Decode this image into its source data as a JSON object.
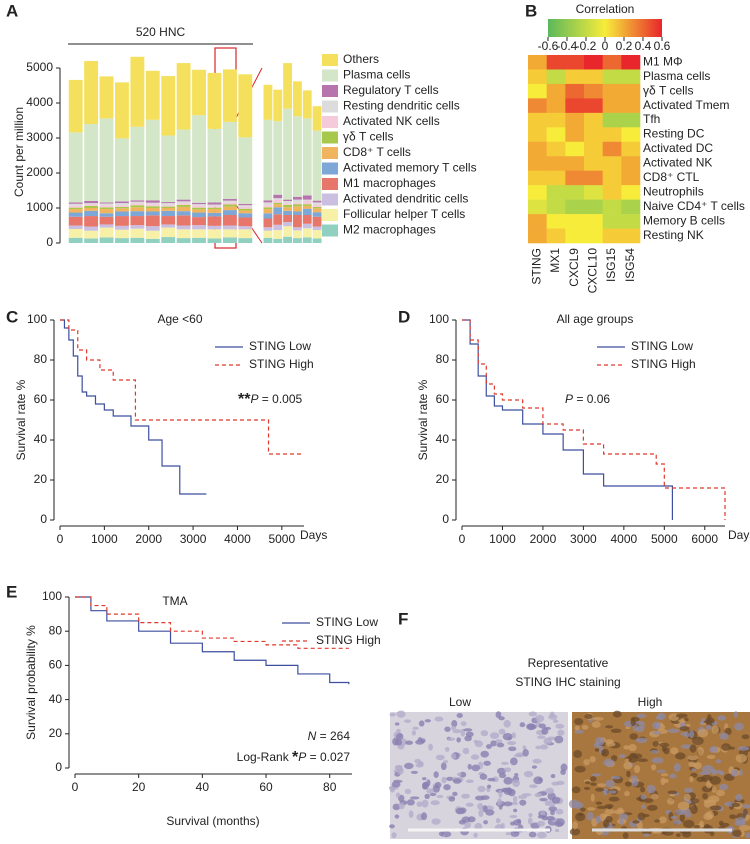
{
  "panel_letters": [
    "A",
    "B",
    "C",
    "D",
    "E",
    "F"
  ],
  "chart_data": [
    {
      "type": "stacked_bar",
      "ylabel": "Count per million",
      "annotation": "520 HNC",
      "categories": [
        null,
        null,
        null,
        null,
        null,
        null,
        null,
        null,
        null,
        null,
        null,
        null
      ],
      "ylim": [
        0,
        5200
      ],
      "yticks": [
        0,
        1000,
        2000,
        3000,
        4000,
        5000
      ],
      "series": [
        {
          "name": "Others",
          "color": "#f4e05c",
          "values": [
            1500,
            1800,
            1200,
            1600,
            2000,
            1400,
            1700,
            1900,
            1300,
            1600,
            1500,
            1800
          ]
        },
        {
          "name": "Plasma cells",
          "color": "#d3e6c8",
          "values": [
            2000,
            2200,
            2400,
            1800,
            2100,
            2300,
            1900,
            2000,
            2500,
            2100,
            2200,
            1900
          ]
        },
        {
          "name": "Regulatory T cells",
          "color": "#b775ad",
          "values": [
            40,
            60,
            30,
            50,
            40,
            70,
            30,
            50,
            40,
            60,
            50,
            40
          ]
        },
        {
          "name": "Resting dendritic cells",
          "color": "#dddcdc",
          "values": [
            60,
            40,
            50,
            70,
            50,
            40,
            60,
            50,
            40,
            50,
            60,
            50
          ]
        },
        {
          "name": "Activated NK cells",
          "color": "#f5cadb",
          "values": [
            50,
            40,
            60,
            40,
            50,
            60,
            40,
            50,
            60,
            40,
            50,
            50
          ]
        },
        {
          "name": "γδ T cells",
          "color": "#a8c84c",
          "values": [
            40,
            60,
            50,
            40,
            60,
            50,
            40,
            60,
            50,
            40,
            60,
            50
          ]
        },
        {
          "name": "CD8⁺ T cells",
          "color": "#f1b45e",
          "values": [
            100,
            80,
            120,
            90,
            110,
            100,
            80,
            120,
            90,
            110,
            100,
            80
          ]
        },
        {
          "name": "Activated memory T cells",
          "color": "#7ca7d6",
          "values": [
            120,
            150,
            100,
            130,
            140,
            110,
            150,
            120,
            130,
            100,
            140,
            120
          ]
        },
        {
          "name": "M1 macrophages",
          "color": "#e8776b",
          "values": [
            250,
            300,
            220,
            280,
            260,
            310,
            240,
            290,
            230,
            270,
            300,
            250
          ]
        },
        {
          "name": "Activated dendritic cells",
          "color": "#cbbfe1",
          "values": [
            100,
            120,
            90,
            110,
            100,
            130,
            90,
            110,
            120,
            100,
            110,
            90
          ]
        },
        {
          "name": "Follicular helper T cells",
          "color": "#f7f1a8",
          "values": [
            250,
            220,
            280,
            240,
            260,
            230,
            270,
            250,
            240,
            260,
            230,
            250
          ]
        },
        {
          "name": "M2 macrophages",
          "color": "#90d0c0",
          "values": [
            150,
            130,
            160,
            140,
            150,
            120,
            170,
            140,
            150,
            130,
            160,
            140
          ]
        }
      ]
    },
    {
      "type": "stacked_bar",
      "categories": [
        null,
        null,
        null,
        null,
        null,
        null
      ],
      "ylim": [
        0,
        5200
      ],
      "series": [
        {
          "color": "#f4e05c",
          "values": [
            1000,
            900,
            1300,
            1000,
            800,
            700
          ]
        },
        {
          "color": "#d3e6c8",
          "values": [
            2300,
            2100,
            2600,
            2300,
            2200,
            2000
          ]
        },
        {
          "color": "#b775ad",
          "values": [
            60,
            100,
            40,
            80,
            120,
            50
          ]
        },
        {
          "color": "#dddcdc",
          "values": [
            80,
            50,
            60,
            90,
            40,
            70
          ]
        },
        {
          "color": "#f5cadb",
          "values": [
            60,
            80,
            50,
            40,
            90,
            60
          ]
        },
        {
          "color": "#a8c84c",
          "values": [
            50,
            40,
            70,
            60,
            50,
            40
          ]
        },
        {
          "color": "#f1b45e",
          "values": [
            120,
            90,
            100,
            150,
            80,
            110
          ]
        },
        {
          "color": "#7ca7d6",
          "values": [
            150,
            200,
            120,
            100,
            180,
            130
          ]
        },
        {
          "color": "#e8776b",
          "values": [
            250,
            300,
            200,
            350,
            250,
            280
          ]
        },
        {
          "color": "#cbbfe1",
          "values": [
            100,
            150,
            120,
            90,
            130,
            100
          ]
        },
        {
          "color": "#f7f1a8",
          "values": [
            200,
            250,
            300,
            220,
            260,
            240
          ]
        },
        {
          "color": "#90d0c0",
          "values": [
            150,
            120,
            180,
            140,
            160,
            130
          ]
        }
      ]
    },
    {
      "type": "heatmap",
      "title": "Correlation",
      "colormap": [
        "#5cb85c",
        "#f7ec3a",
        "#e8262b"
      ],
      "clim": [
        -0.6,
        0.6
      ],
      "cticks": [
        -0.6,
        -0.4,
        -0.2,
        0,
        0.2,
        0.4,
        0.6
      ],
      "rows": [
        "M1 MΦ",
        "Plasma cells",
        "γδ T cells",
        "Activated Tmem",
        "Tfh",
        "Resting DC",
        "Activated DC",
        "Activated NK",
        "CD8⁺ CTL",
        "Neutrophils",
        "Naive CD4⁺ T cells",
        "Memory B cells",
        "Resting NK"
      ],
      "columns": [
        "STING",
        "MX1",
        "CXCL9",
        "CXCL10",
        "ISG15",
        "ISG54"
      ],
      "values": [
        [
          0.2,
          0.5,
          0.5,
          0.6,
          0.4,
          0.6
        ],
        [
          0.1,
          -0.2,
          0.1,
          0.1,
          -0.2,
          -0.2
        ],
        [
          0,
          0.2,
          0.4,
          0.3,
          0.2,
          0.2
        ],
        [
          0.3,
          0.2,
          0.5,
          0.5,
          0.2,
          0.2
        ],
        [
          0.1,
          0.1,
          0.2,
          0.1,
          -0.3,
          -0.3
        ],
        [
          0.1,
          0,
          0.2,
          0.1,
          0.1,
          0
        ],
        [
          0.2,
          0.1,
          0,
          0.1,
          0.3,
          0.1
        ],
        [
          0.2,
          0.2,
          0.2,
          0.1,
          0.1,
          0.2
        ],
        [
          0.1,
          0.1,
          0.3,
          0.3,
          0.1,
          0.2
        ],
        [
          0,
          -0.2,
          -0.2,
          -0.1,
          0.1,
          0
        ],
        [
          -0.1,
          -0.2,
          -0.3,
          -0.3,
          -0.2,
          -0.3
        ],
        [
          0.2,
          0,
          0,
          0,
          -0.2,
          -0.2
        ],
        [
          0.2,
          0.1,
          0,
          0,
          0.1,
          0.1
        ]
      ]
    },
    {
      "type": "step",
      "title": "Age <60",
      "ylabel": "Survival rate %",
      "xlabel": "Days",
      "xlim": [
        0,
        5500
      ],
      "xticks": [
        0,
        1000,
        2000,
        3000,
        4000,
        5000
      ],
      "ylim": [
        0,
        100
      ],
      "yticks": [
        0,
        20,
        40,
        60,
        80,
        100
      ],
      "annotation": {
        "stars": "**",
        "p": "P",
        "rest": " = 0.005"
      },
      "series": [
        {
          "name": "STING Low",
          "color": "#3d4f9f",
          "dash": false,
          "x": [
            0,
            100,
            200,
            300,
            400,
            500,
            600,
            800,
            1000,
            1200,
            1600,
            2000,
            2300,
            2700,
            3300
          ],
          "values": [
            100,
            96,
            90,
            82,
            72,
            64,
            62,
            58,
            55,
            52,
            47,
            40,
            27,
            13,
            13
          ]
        },
        {
          "name": "STING High",
          "color": "#e0392c",
          "dash": true,
          "x": [
            0,
            200,
            400,
            600,
            900,
            1200,
            1700,
            2600,
            4700,
            5500
          ],
          "values": [
            100,
            95,
            85,
            80,
            75,
            70,
            50,
            50,
            33,
            33
          ]
        }
      ]
    },
    {
      "type": "step",
      "title": "All age groups",
      "ylabel": "Survival rate %",
      "xlabel": "Days",
      "xlim": [
        0,
        6500
      ],
      "xticks": [
        0,
        1000,
        2000,
        3000,
        4000,
        5000,
        6000
      ],
      "ylim": [
        0,
        100
      ],
      "yticks": [
        0,
        20,
        40,
        60,
        80,
        100
      ],
      "annotation": {
        "p": "P",
        "rest": " = 0.06"
      },
      "series": [
        {
          "name": "STING Low",
          "color": "#3d4f9f",
          "dash": false,
          "x": [
            0,
            200,
            400,
            600,
            800,
            1000,
            1500,
            2000,
            2500,
            3000,
            3500,
            5000,
            5200
          ],
          "values": [
            100,
            88,
            72,
            62,
            57,
            55,
            48,
            43,
            35,
            23,
            17,
            17,
            0
          ]
        },
        {
          "name": "STING High",
          "color": "#e0392c",
          "dash": true,
          "x": [
            0,
            200,
            400,
            600,
            800,
            1000,
            1500,
            2000,
            2500,
            3000,
            3500,
            4800,
            5000,
            6500
          ],
          "values": [
            100,
            90,
            78,
            68,
            63,
            60,
            56,
            48,
            45,
            38,
            33,
            28,
            16,
            0
          ]
        }
      ]
    },
    {
      "type": "step",
      "title": "TMA",
      "ylabel": "Survival probability %",
      "xlabel": "Survival (months)",
      "xlim": [
        0,
        87
      ],
      "xticks": [
        0,
        20,
        40,
        60,
        80
      ],
      "ylim": [
        0,
        100
      ],
      "yticks": [
        0,
        20,
        40,
        60,
        80,
        100
      ],
      "annotation_n": {
        "n": "N",
        "rest": " = 264"
      },
      "annotation": {
        "prefix": "Log-Rank ",
        "stars": "*",
        "p": "P",
        "rest": " = 0.027"
      },
      "series": [
        {
          "name": "STING Low",
          "color": "#3d4f9f",
          "dash": false,
          "x": [
            0,
            5,
            10,
            20,
            30,
            40,
            50,
            60,
            70,
            80,
            86
          ],
          "values": [
            100,
            92,
            86,
            80,
            73,
            68,
            63,
            60,
            55,
            50,
            49
          ]
        },
        {
          "name": "STING High",
          "color": "#e0392c",
          "dash": true,
          "x": [
            0,
            5,
            10,
            20,
            30,
            40,
            50,
            60,
            70,
            80,
            86
          ],
          "values": [
            100,
            95,
            90,
            85,
            80,
            76,
            74,
            72,
            70,
            70,
            70
          ]
        }
      ]
    }
  ],
  "panel_f": {
    "title": "Representative",
    "subtitle": "STING IHC staining",
    "labels": [
      "Low",
      "High"
    ]
  }
}
